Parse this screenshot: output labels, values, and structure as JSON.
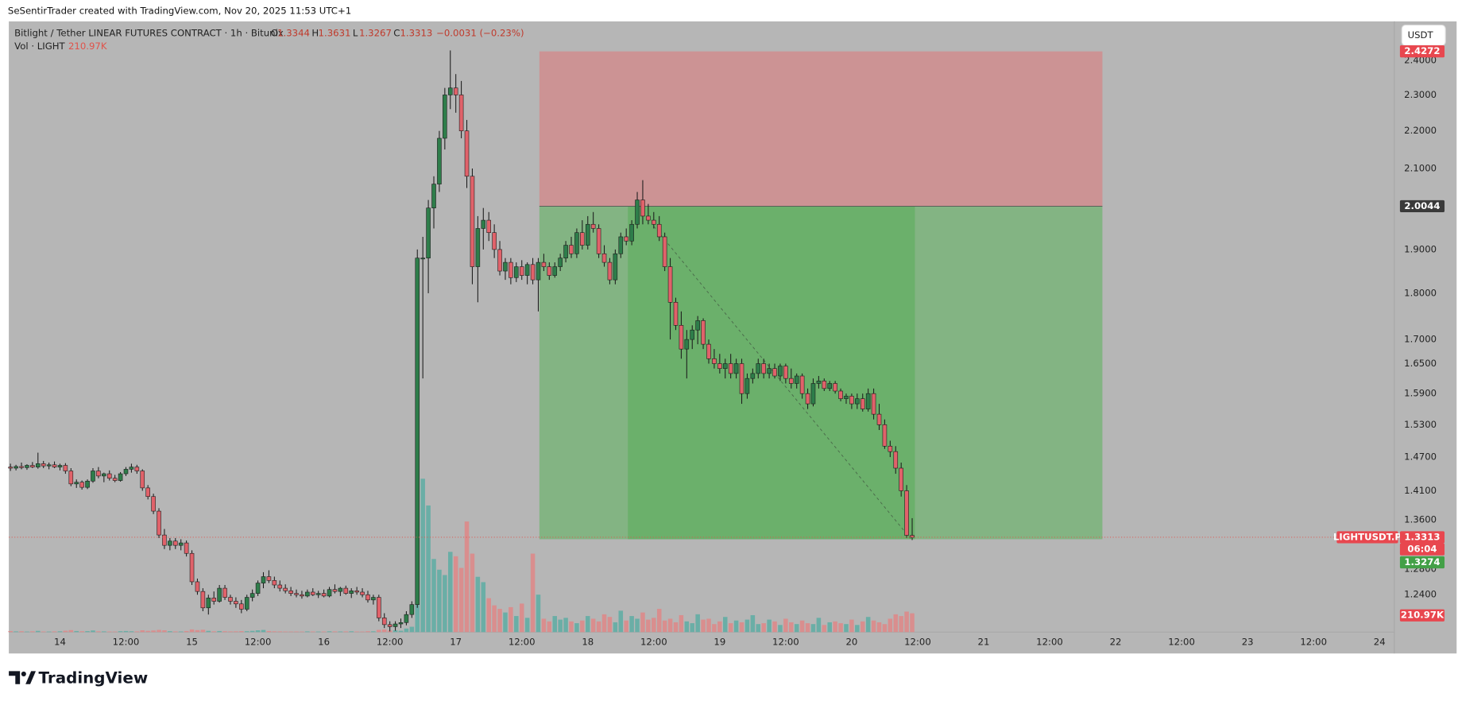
{
  "chart_data": {
    "type": "candlestick",
    "attribution": "SeSentirTrader created with TradingView.com, Nov 20, 2025 11:53 UTC+1",
    "title": "Bitlight / Tether LINEAR FUTURES CONTRACT · 1h · Bitunix",
    "legend": {
      "labels": [
        "O",
        "H",
        "L",
        "C"
      ],
      "values": [
        1.3344,
        1.3631,
        1.3267,
        1.3313
      ],
      "change": "−0.0031 (−0.23%)"
    },
    "volume_title": "Vol · LIGHT",
    "volume_label": "210.97K",
    "currency": "USDT",
    "symbol": "LIGHTUSDT.P",
    "countdown": "06:04",
    "bid_price": 1.3274,
    "brand": "TradingView",
    "log_scale": true,
    "grid": false,
    "up_color": "#2e7d4a",
    "down_color": "#e0626a",
    "volume_up_color": "#6aaea6",
    "volume_down_color": "#d98e8e",
    "xlim": [
      -0.3,
      251.7
    ],
    "ylim": [
      1.184,
      2.516
    ],
    "xticks": [
      {
        "value": 9,
        "label": "14"
      },
      {
        "value": 21,
        "label": "12:00"
      },
      {
        "value": 33,
        "label": "15"
      },
      {
        "value": 45,
        "label": "12:00"
      },
      {
        "value": 57,
        "label": "16"
      },
      {
        "value": 69,
        "label": "12:00"
      },
      {
        "value": 81,
        "label": "17"
      },
      {
        "value": 93,
        "label": "12:00"
      },
      {
        "value": 105,
        "label": "18"
      },
      {
        "value": 117,
        "label": "12:00"
      },
      {
        "value": 129,
        "label": "19"
      },
      {
        "value": 141,
        "label": "12:00"
      },
      {
        "value": 153,
        "label": "20"
      },
      {
        "value": 165,
        "label": "12:00"
      },
      {
        "value": 177,
        "label": "21"
      },
      {
        "value": 189,
        "label": "12:00"
      },
      {
        "value": 201,
        "label": "22"
      },
      {
        "value": 213,
        "label": "12:00"
      },
      {
        "value": 225,
        "label": "23"
      },
      {
        "value": 237,
        "label": "12:00"
      },
      {
        "value": 249,
        "label": "24"
      }
    ],
    "yticks": [
      {
        "value": 2.4,
        "label": "2.4000"
      },
      {
        "value": 2.3,
        "label": "2.3000"
      },
      {
        "value": 2.2,
        "label": "2.2000"
      },
      {
        "value": 2.1,
        "label": "2.1000"
      },
      {
        "value": 1.9,
        "label": "1.9000"
      },
      {
        "value": 1.8,
        "label": "1.8000"
      },
      {
        "value": 1.7,
        "label": "1.7000"
      },
      {
        "value": 1.65,
        "label": "1.6500"
      },
      {
        "value": 1.59,
        "label": "1.5900"
      },
      {
        "value": 1.53,
        "label": "1.5300"
      },
      {
        "value": 1.47,
        "label": "1.4700"
      },
      {
        "value": 1.41,
        "label": "1.4100"
      },
      {
        "value": 1.36,
        "label": "1.3600"
      },
      {
        "value": 1.28,
        "label": "1.2800"
      },
      {
        "value": 1.24,
        "label": "1.2400"
      }
    ],
    "position": {
      "stop": 2.4272,
      "entry": 2.0044,
      "target": 1.328,
      "start": 96.2,
      "entry_candle": 112.3,
      "exit_candle": 164.5,
      "end": 198.6
    },
    "trade_line": {
      "x": [
        117.0,
        163.8
      ],
      "y": [
        1.955,
        1.328
      ]
    },
    "candles": [
      [
        1.452,
        1.458,
        1.445,
        1.45
      ],
      [
        1.45,
        1.456,
        1.446,
        1.453
      ],
      [
        1.453,
        1.46,
        1.448,
        1.451
      ],
      [
        1.451,
        1.457,
        1.447,
        1.455
      ],
      [
        1.455,
        1.461,
        1.45,
        1.452
      ],
      [
        1.452,
        1.478,
        1.449,
        1.458
      ],
      [
        1.458,
        1.463,
        1.45,
        1.454
      ],
      [
        1.454,
        1.46,
        1.448,
        1.456
      ],
      [
        1.456,
        1.462,
        1.45,
        1.452
      ],
      [
        1.452,
        1.458,
        1.446,
        1.455
      ],
      [
        1.455,
        1.459,
        1.44,
        1.445
      ],
      [
        1.445,
        1.45,
        1.418,
        1.422
      ],
      [
        1.422,
        1.43,
        1.415,
        1.425
      ],
      [
        1.425,
        1.428,
        1.412,
        1.416
      ],
      [
        1.416,
        1.43,
        1.413,
        1.427
      ],
      [
        1.427,
        1.45,
        1.424,
        1.445
      ],
      [
        1.445,
        1.452,
        1.432,
        1.436
      ],
      [
        1.436,
        1.442,
        1.425,
        1.44
      ],
      [
        1.44,
        1.446,
        1.428,
        1.432
      ],
      [
        1.432,
        1.438,
        1.425,
        1.428
      ],
      [
        1.428,
        1.443,
        1.426,
        1.44
      ],
      [
        1.44,
        1.452,
        1.436,
        1.448
      ],
      [
        1.448,
        1.458,
        1.442,
        1.452
      ],
      [
        1.452,
        1.456,
        1.44,
        1.445
      ],
      [
        1.445,
        1.448,
        1.41,
        1.415
      ],
      [
        1.415,
        1.42,
        1.395,
        1.4
      ],
      [
        1.4,
        1.405,
        1.37,
        1.375
      ],
      [
        1.375,
        1.38,
        1.33,
        1.335
      ],
      [
        1.335,
        1.345,
        1.312,
        1.318
      ],
      [
        1.318,
        1.33,
        1.31,
        1.325
      ],
      [
        1.325,
        1.33,
        1.312,
        1.318
      ],
      [
        1.318,
        1.328,
        1.31,
        1.322
      ],
      [
        1.322,
        1.326,
        1.3,
        1.305
      ],
      [
        1.305,
        1.31,
        1.255,
        1.26
      ],
      [
        1.26,
        1.265,
        1.24,
        1.245
      ],
      [
        1.245,
        1.25,
        1.215,
        1.22
      ],
      [
        1.22,
        1.24,
        1.21,
        1.235
      ],
      [
        1.235,
        1.245,
        1.225,
        1.23
      ],
      [
        1.23,
        1.255,
        1.228,
        1.25
      ],
      [
        1.25,
        1.255,
        1.232,
        1.236
      ],
      [
        1.236,
        1.24,
        1.225,
        1.23
      ],
      [
        1.23,
        1.236,
        1.22,
        1.226
      ],
      [
        1.226,
        1.232,
        1.212,
        1.218
      ],
      [
        1.218,
        1.24,
        1.215,
        1.236
      ],
      [
        1.236,
        1.248,
        1.23,
        1.242
      ],
      [
        1.242,
        1.262,
        1.238,
        1.258
      ],
      [
        1.258,
        1.275,
        1.25,
        1.268
      ],
      [
        1.268,
        1.278,
        1.258,
        1.262
      ],
      [
        1.262,
        1.268,
        1.25,
        1.255
      ],
      [
        1.255,
        1.262,
        1.245,
        1.25
      ],
      [
        1.25,
        1.256,
        1.242,
        1.246
      ],
      [
        1.246,
        1.252,
        1.238,
        1.242
      ],
      [
        1.242,
        1.248,
        1.236,
        1.24
      ],
      [
        1.24,
        1.246,
        1.234,
        1.238
      ],
      [
        1.238,
        1.248,
        1.236,
        1.244
      ],
      [
        1.244,
        1.25,
        1.238,
        1.24
      ],
      [
        1.24,
        1.246,
        1.235,
        1.242
      ],
      [
        1.242,
        1.248,
        1.236,
        1.238
      ],
      [
        1.238,
        1.252,
        1.236,
        1.248
      ],
      [
        1.248,
        1.256,
        1.242,
        1.245
      ],
      [
        1.245,
        1.252,
        1.238,
        1.25
      ],
      [
        1.25,
        1.254,
        1.24,
        1.242
      ],
      [
        1.242,
        1.25,
        1.235,
        1.246
      ],
      [
        1.246,
        1.252,
        1.24,
        1.244
      ],
      [
        1.244,
        1.25,
        1.236,
        1.24
      ],
      [
        1.24,
        1.246,
        1.228,
        1.232
      ],
      [
        1.232,
        1.24,
        1.225,
        1.236
      ],
      [
        1.236,
        1.24,
        1.2,
        1.205
      ],
      [
        1.205,
        1.212,
        1.19,
        1.195
      ],
      [
        1.195,
        1.2,
        1.185,
        1.192
      ],
      [
        1.192,
        1.2,
        1.186,
        1.196
      ],
      [
        1.196,
        1.204,
        1.19,
        1.198
      ],
      [
        1.198,
        1.215,
        1.194,
        1.21
      ],
      [
        1.21,
        1.23,
        1.205,
        1.225
      ],
      [
        1.225,
        1.9,
        1.22,
        1.88
      ],
      [
        1.88,
        1.93,
        1.62,
        1.88
      ],
      [
        1.88,
        2.02,
        1.8,
        2.0
      ],
      [
        2.0,
        2.08,
        1.95,
        2.06
      ],
      [
        2.06,
        2.2,
        2.04,
        2.18
      ],
      [
        2.18,
        2.32,
        2.15,
        2.3
      ],
      [
        2.3,
        2.43,
        2.26,
        2.32
      ],
      [
        2.32,
        2.36,
        2.25,
        2.3
      ],
      [
        2.3,
        2.34,
        2.18,
        2.2
      ],
      [
        2.2,
        2.23,
        2.05,
        2.08
      ],
      [
        2.08,
        2.1,
        1.82,
        1.86
      ],
      [
        1.86,
        1.98,
        1.78,
        1.95
      ],
      [
        1.95,
        2.0,
        1.9,
        1.97
      ],
      [
        1.97,
        1.99,
        1.92,
        1.94
      ],
      [
        1.94,
        1.96,
        1.88,
        1.9
      ],
      [
        1.9,
        1.92,
        1.84,
        1.85
      ],
      [
        1.85,
        1.88,
        1.83,
        1.87
      ],
      [
        1.87,
        1.88,
        1.82,
        1.835
      ],
      [
        1.835,
        1.87,
        1.825,
        1.86
      ],
      [
        1.86,
        1.875,
        1.83,
        1.84
      ],
      [
        1.84,
        1.87,
        1.82,
        1.865
      ],
      [
        1.865,
        1.88,
        1.82,
        1.83
      ],
      [
        1.83,
        1.88,
        1.76,
        1.87
      ],
      [
        1.87,
        1.89,
        1.85,
        1.86
      ],
      [
        1.86,
        1.87,
        1.83,
        1.84
      ],
      [
        1.84,
        1.87,
        1.835,
        1.86
      ],
      [
        1.86,
        1.89,
        1.85,
        1.88
      ],
      [
        1.88,
        1.92,
        1.87,
        1.91
      ],
      [
        1.91,
        1.93,
        1.88,
        1.89
      ],
      [
        1.89,
        1.95,
        1.88,
        1.94
      ],
      [
        1.94,
        1.97,
        1.9,
        1.91
      ],
      [
        1.91,
        1.98,
        1.9,
        1.96
      ],
      [
        1.96,
        1.99,
        1.94,
        1.95
      ],
      [
        1.95,
        1.96,
        1.88,
        1.89
      ],
      [
        1.89,
        1.91,
        1.86,
        1.87
      ],
      [
        1.87,
        1.88,
        1.82,
        1.83
      ],
      [
        1.83,
        1.9,
        1.82,
        1.89
      ],
      [
        1.89,
        1.94,
        1.88,
        1.93
      ],
      [
        1.93,
        1.95,
        1.91,
        1.92
      ],
      [
        1.92,
        1.97,
        1.91,
        1.96
      ],
      [
        1.96,
        2.04,
        1.95,
        2.02
      ],
      [
        2.02,
        2.07,
        1.96,
        1.98
      ],
      [
        1.98,
        2.01,
        1.96,
        1.97
      ],
      [
        1.97,
        1.99,
        1.95,
        1.96
      ],
      [
        1.96,
        1.98,
        1.92,
        1.93
      ],
      [
        1.93,
        1.94,
        1.85,
        1.86
      ],
      [
        1.86,
        1.88,
        1.7,
        1.78
      ],
      [
        1.78,
        1.79,
        1.72,
        1.73
      ],
      [
        1.73,
        1.76,
        1.66,
        1.68
      ],
      [
        1.68,
        1.72,
        1.62,
        1.7
      ],
      [
        1.7,
        1.73,
        1.68,
        1.72
      ],
      [
        1.72,
        1.75,
        1.69,
        1.74
      ],
      [
        1.74,
        1.745,
        1.68,
        1.69
      ],
      [
        1.69,
        1.7,
        1.65,
        1.66
      ],
      [
        1.66,
        1.68,
        1.64,
        1.65
      ],
      [
        1.65,
        1.67,
        1.63,
        1.64
      ],
      [
        1.64,
        1.66,
        1.62,
        1.65
      ],
      [
        1.65,
        1.67,
        1.62,
        1.63
      ],
      [
        1.63,
        1.66,
        1.62,
        1.65
      ],
      [
        1.65,
        1.66,
        1.57,
        1.59
      ],
      [
        1.59,
        1.63,
        1.58,
        1.62
      ],
      [
        1.62,
        1.64,
        1.61,
        1.63
      ],
      [
        1.63,
        1.66,
        1.62,
        1.65
      ],
      [
        1.65,
        1.66,
        1.62,
        1.63
      ],
      [
        1.63,
        1.65,
        1.62,
        1.64
      ],
      [
        1.64,
        1.65,
        1.62,
        1.625
      ],
      [
        1.625,
        1.65,
        1.615,
        1.645
      ],
      [
        1.645,
        1.65,
        1.61,
        1.62
      ],
      [
        1.62,
        1.64,
        1.6,
        1.61
      ],
      [
        1.61,
        1.63,
        1.6,
        1.625
      ],
      [
        1.625,
        1.63,
        1.58,
        1.59
      ],
      [
        1.59,
        1.6,
        1.56,
        1.57
      ],
      [
        1.57,
        1.62,
        1.565,
        1.61
      ],
      [
        1.61,
        1.625,
        1.6,
        1.615
      ],
      [
        1.615,
        1.62,
        1.595,
        1.6
      ],
      [
        1.6,
        1.615,
        1.595,
        1.61
      ],
      [
        1.61,
        1.615,
        1.59,
        1.595
      ],
      [
        1.595,
        1.6,
        1.575,
        1.58
      ],
      [
        1.58,
        1.59,
        1.57,
        1.585
      ],
      [
        1.585,
        1.59,
        1.56,
        1.57
      ],
      [
        1.57,
        1.59,
        1.56,
        1.58
      ],
      [
        1.58,
        1.59,
        1.555,
        1.56
      ],
      [
        1.56,
        1.6,
        1.555,
        1.59
      ],
      [
        1.59,
        1.6,
        1.54,
        1.55
      ],
      [
        1.55,
        1.57,
        1.52,
        1.53
      ],
      [
        1.53,
        1.54,
        1.485,
        1.49
      ],
      [
        1.49,
        1.5,
        1.47,
        1.48
      ],
      [
        1.48,
        1.49,
        1.44,
        1.45
      ],
      [
        1.45,
        1.46,
        1.4,
        1.41
      ],
      [
        1.41,
        1.42,
        1.33,
        1.3344
      ],
      [
        1.3344,
        1.3631,
        1.3267,
        1.3313
      ]
    ],
    "volumes": [
      12,
      8,
      10,
      6,
      9,
      14,
      7,
      6,
      8,
      9,
      15,
      22,
      12,
      10,
      11,
      18,
      9,
      8,
      7,
      6,
      10,
      12,
      9,
      8,
      20,
      14,
      18,
      25,
      20,
      10,
      8,
      7,
      12,
      30,
      22,
      26,
      14,
      9,
      12,
      10,
      8,
      9,
      11,
      10,
      14,
      20,
      24,
      12,
      9,
      8,
      7,
      6,
      7,
      6,
      8,
      7,
      6,
      7,
      9,
      8,
      7,
      8,
      9,
      7,
      6,
      10,
      9,
      25,
      30,
      18,
      20,
      15,
      40,
      60,
      1500,
      1720,
      1420,
      820,
      700,
      640,
      900,
      850,
      720,
      1240,
      880,
      620,
      560,
      380,
      300,
      260,
      220,
      280,
      180,
      320,
      160,
      880,
      420,
      150,
      120,
      180,
      140,
      160,
      120,
      100,
      130,
      180,
      150,
      120,
      200,
      170,
      110,
      240,
      130,
      180,
      150,
      220,
      140,
      160,
      260,
      130,
      150,
      110,
      190,
      120,
      100,
      200,
      140,
      150,
      90,
      120,
      170,
      100,
      130,
      110,
      140,
      190,
      90,
      100,
      140,
      120,
      80,
      150,
      110,
      90,
      130,
      100,
      90,
      160,
      80,
      110,
      120,
      100,
      90,
      140,
      80,
      120,
      170,
      130,
      110,
      90,
      150,
      200,
      180,
      230,
      210.97
    ]
  }
}
